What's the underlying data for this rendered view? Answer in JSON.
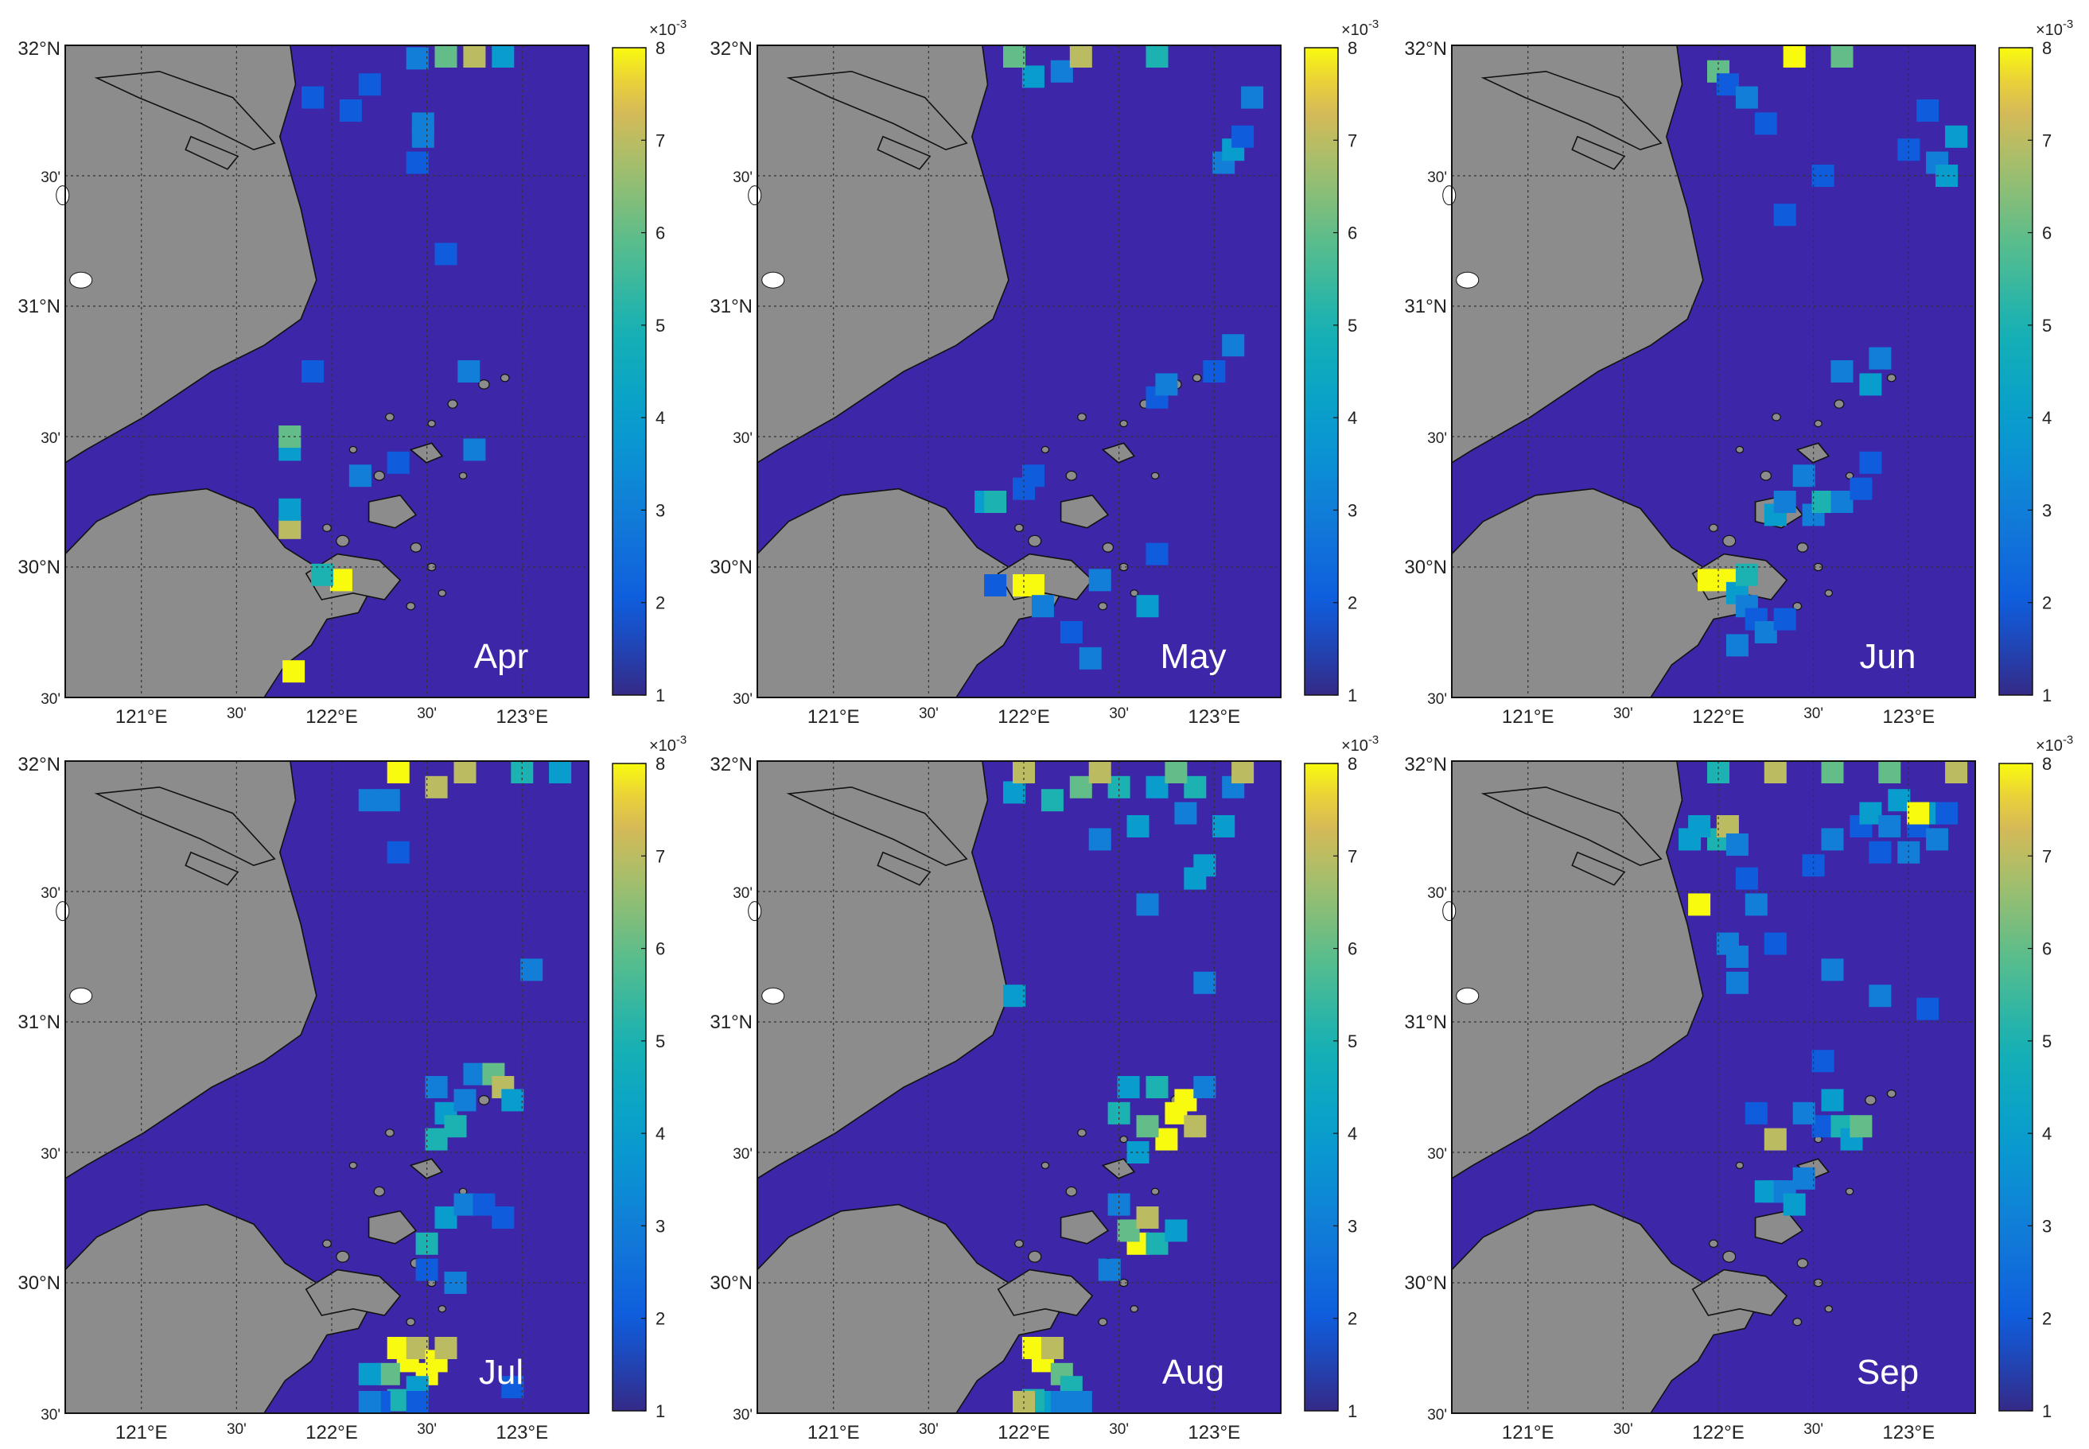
{
  "figure": {
    "panels": [
      {
        "month": "Apr",
        "hotspots": [
          [
            122.05,
            29.95,
            8
          ],
          [
            121.95,
            29.97,
            5
          ],
          [
            121.78,
            30.15,
            7
          ],
          [
            121.78,
            30.22,
            4
          ],
          [
            121.78,
            30.45,
            4
          ],
          [
            121.78,
            30.5,
            6
          ],
          [
            121.8,
            29.6,
            8
          ],
          [
            121.9,
            30.75,
            2
          ],
          [
            122.15,
            30.35,
            3
          ],
          [
            122.35,
            30.4,
            2
          ],
          [
            122.75,
            30.45,
            3
          ],
          [
            122.72,
            30.75,
            3
          ],
          [
            122.6,
            31.2,
            2
          ],
          [
            122.45,
            31.55,
            2
          ],
          [
            122.48,
            31.65,
            3
          ],
          [
            122.48,
            31.7,
            3
          ],
          [
            122.1,
            31.75,
            2
          ],
          [
            122.2,
            31.85,
            2
          ],
          [
            121.9,
            31.8,
            2
          ],
          [
            122.45,
            31.95,
            3
          ],
          [
            122.6,
            31.98,
            6
          ],
          [
            122.75,
            31.98,
            7
          ],
          [
            122.9,
            31.98,
            4
          ]
        ]
      },
      {
        "month": "May",
        "hotspots": [
          [
            122.05,
            29.93,
            8
          ],
          [
            122.0,
            29.93,
            8
          ],
          [
            121.85,
            29.93,
            2
          ],
          [
            121.8,
            30.25,
            4
          ],
          [
            121.85,
            30.25,
            5
          ],
          [
            122.0,
            30.3,
            2
          ],
          [
            122.05,
            30.35,
            2
          ],
          [
            122.1,
            29.85,
            3
          ],
          [
            122.25,
            29.75,
            2
          ],
          [
            122.35,
            29.65,
            3
          ],
          [
            122.4,
            29.95,
            3
          ],
          [
            122.65,
            29.85,
            4
          ],
          [
            122.7,
            30.05,
            2
          ],
          [
            122.7,
            30.65,
            2
          ],
          [
            122.75,
            30.7,
            3
          ],
          [
            123.0,
            30.75,
            2
          ],
          [
            123.1,
            30.85,
            3
          ],
          [
            123.05,
            31.55,
            3
          ],
          [
            123.1,
            31.6,
            4
          ],
          [
            123.15,
            31.65,
            2
          ],
          [
            123.2,
            31.8,
            3
          ],
          [
            122.05,
            31.88,
            4
          ],
          [
            122.2,
            31.9,
            3
          ],
          [
            121.95,
            31.98,
            6
          ],
          [
            122.3,
            31.98,
            7
          ],
          [
            122.7,
            31.98,
            5
          ]
        ]
      },
      {
        "month": "Jun",
        "hotspots": [
          [
            122.05,
            29.95,
            8
          ],
          [
            121.95,
            29.95,
            8
          ],
          [
            122.1,
            29.9,
            4
          ],
          [
            122.15,
            29.85,
            3
          ],
          [
            122.2,
            29.8,
            2
          ],
          [
            122.1,
            29.7,
            3
          ],
          [
            122.25,
            29.75,
            3
          ],
          [
            122.35,
            29.8,
            2
          ],
          [
            122.15,
            29.97,
            5
          ],
          [
            122.3,
            30.2,
            4
          ],
          [
            122.35,
            30.25,
            3
          ],
          [
            122.5,
            30.2,
            3
          ],
          [
            122.55,
            30.25,
            5
          ],
          [
            122.65,
            30.25,
            3
          ],
          [
            122.75,
            30.3,
            2
          ],
          [
            122.8,
            30.4,
            2
          ],
          [
            122.45,
            30.35,
            3
          ],
          [
            122.65,
            30.75,
            3
          ],
          [
            122.8,
            30.7,
            4
          ],
          [
            122.85,
            30.8,
            3
          ],
          [
            122.35,
            31.35,
            2
          ],
          [
            122.55,
            31.5,
            2
          ],
          [
            123.0,
            31.6,
            2
          ],
          [
            123.15,
            31.55,
            3
          ],
          [
            123.2,
            31.5,
            4
          ],
          [
            123.25,
            31.65,
            4
          ],
          [
            123.1,
            31.75,
            2
          ],
          [
            122.0,
            31.9,
            6
          ],
          [
            122.05,
            31.85,
            2
          ],
          [
            122.15,
            31.8,
            3
          ],
          [
            122.25,
            31.7,
            2
          ],
          [
            122.4,
            31.98,
            8
          ],
          [
            122.65,
            31.98,
            6
          ]
        ]
      },
      {
        "month": "Jul",
        "hotspots": [
          [
            122.35,
            29.75,
            8
          ],
          [
            122.4,
            29.7,
            8
          ],
          [
            122.45,
            29.75,
            7
          ],
          [
            122.5,
            29.65,
            8
          ],
          [
            122.55,
            29.7,
            8
          ],
          [
            122.6,
            29.75,
            7
          ],
          [
            122.3,
            29.65,
            6
          ],
          [
            122.35,
            29.55,
            5
          ],
          [
            122.45,
            29.6,
            4
          ],
          [
            122.2,
            29.65,
            4
          ],
          [
            122.25,
            29.5,
            2
          ],
          [
            122.2,
            29.42,
            3
          ],
          [
            122.45,
            29.35,
            2
          ],
          [
            122.5,
            30.15,
            5
          ],
          [
            122.6,
            30.25,
            4
          ],
          [
            122.7,
            30.3,
            3
          ],
          [
            122.8,
            30.3,
            2
          ],
          [
            122.9,
            30.25,
            2
          ],
          [
            122.5,
            30.05,
            2
          ],
          [
            122.65,
            30.0,
            3
          ],
          [
            122.95,
            29.6,
            2
          ],
          [
            122.55,
            30.55,
            5
          ],
          [
            122.6,
            30.65,
            4
          ],
          [
            122.7,
            30.7,
            3
          ],
          [
            122.75,
            30.8,
            3
          ],
          [
            122.85,
            30.8,
            6
          ],
          [
            122.9,
            30.75,
            7
          ],
          [
            122.95,
            30.7,
            4
          ],
          [
            122.65,
            30.6,
            5
          ],
          [
            122.55,
            30.75,
            3
          ],
          [
            123.05,
            31.2,
            3
          ],
          [
            122.35,
            31.65,
            2
          ],
          [
            122.2,
            31.85,
            3
          ],
          [
            122.3,
            31.85,
            3
          ],
          [
            122.55,
            31.9,
            7
          ],
          [
            122.35,
            31.98,
            8
          ],
          [
            122.7,
            31.98,
            7
          ],
          [
            123.0,
            31.98,
            5
          ],
          [
            123.2,
            31.98,
            4
          ]
        ]
      },
      {
        "month": "Aug",
        "hotspots": [
          [
            122.05,
            29.75,
            8
          ],
          [
            122.1,
            29.7,
            8
          ],
          [
            122.15,
            29.75,
            7
          ],
          [
            122.2,
            29.65,
            6
          ],
          [
            122.25,
            29.6,
            5
          ],
          [
            122.1,
            29.5,
            4
          ],
          [
            122.2,
            29.45,
            3
          ],
          [
            122.05,
            29.55,
            5
          ],
          [
            122.0,
            29.45,
            7
          ],
          [
            122.3,
            29.5,
            3
          ],
          [
            122.6,
            30.15,
            8
          ],
          [
            122.55,
            30.2,
            6
          ],
          [
            122.65,
            30.25,
            7
          ],
          [
            122.7,
            30.15,
            5
          ],
          [
            122.5,
            30.3,
            3
          ],
          [
            122.8,
            30.2,
            4
          ],
          [
            122.45,
            30.05,
            3
          ],
          [
            122.75,
            30.55,
            8
          ],
          [
            122.8,
            30.65,
            8
          ],
          [
            122.85,
            30.7,
            8
          ],
          [
            122.9,
            30.6,
            7
          ],
          [
            122.7,
            30.75,
            5
          ],
          [
            122.65,
            30.6,
            6
          ],
          [
            122.6,
            30.5,
            4
          ],
          [
            122.95,
            30.75,
            3
          ],
          [
            122.5,
            30.65,
            5
          ],
          [
            122.55,
            30.75,
            4
          ],
          [
            122.95,
            31.15,
            3
          ],
          [
            121.95,
            31.1,
            4
          ],
          [
            122.65,
            31.45,
            3
          ],
          [
            122.9,
            31.55,
            4
          ],
          [
            122.95,
            31.6,
            4
          ],
          [
            122.4,
            31.7,
            3
          ],
          [
            122.6,
            31.75,
            4
          ],
          [
            122.85,
            31.8,
            3
          ],
          [
            123.05,
            31.75,
            4
          ],
          [
            121.95,
            31.88,
            4
          ],
          [
            122.15,
            31.85,
            5
          ],
          [
            122.3,
            31.9,
            6
          ],
          [
            122.5,
            31.9,
            5
          ],
          [
            122.7,
            31.9,
            4
          ],
          [
            122.9,
            31.9,
            5
          ],
          [
            123.1,
            31.9,
            3
          ],
          [
            122.0,
            31.98,
            7
          ],
          [
            122.4,
            31.98,
            7
          ],
          [
            122.8,
            31.98,
            6
          ],
          [
            123.15,
            31.98,
            7
          ]
        ]
      },
      {
        "month": "Sep",
        "hotspots": [
          [
            122.25,
            30.35,
            4
          ],
          [
            122.3,
            30.35,
            4
          ],
          [
            122.35,
            30.35,
            3
          ],
          [
            122.4,
            30.3,
            4
          ],
          [
            122.45,
            30.4,
            3
          ],
          [
            122.55,
            30.6,
            2
          ],
          [
            122.6,
            30.7,
            4
          ],
          [
            122.65,
            30.6,
            5
          ],
          [
            122.7,
            30.55,
            4
          ],
          [
            122.75,
            30.6,
            6
          ],
          [
            122.3,
            30.55,
            7
          ],
          [
            122.45,
            30.65,
            3
          ],
          [
            122.2,
            30.65,
            2
          ],
          [
            122.55,
            30.85,
            2
          ],
          [
            122.1,
            31.15,
            3
          ],
          [
            122.3,
            31.3,
            2
          ],
          [
            122.6,
            31.2,
            3
          ],
          [
            122.85,
            31.1,
            3
          ],
          [
            123.1,
            31.05,
            2
          ],
          [
            121.9,
            31.45,
            8
          ],
          [
            122.0,
            31.7,
            5
          ],
          [
            122.05,
            31.75,
            7
          ],
          [
            122.1,
            31.68,
            3
          ],
          [
            121.85,
            31.7,
            4
          ],
          [
            121.9,
            31.75,
            4
          ],
          [
            122.15,
            31.55,
            2
          ],
          [
            122.2,
            31.45,
            3
          ],
          [
            122.05,
            31.3,
            3
          ],
          [
            122.1,
            31.25,
            3
          ],
          [
            122.5,
            31.6,
            2
          ],
          [
            122.6,
            31.7,
            3
          ],
          [
            122.75,
            31.75,
            2
          ],
          [
            122.8,
            31.8,
            4
          ],
          [
            122.9,
            31.75,
            3
          ],
          [
            122.95,
            31.85,
            4
          ],
          [
            123.05,
            31.75,
            2
          ],
          [
            123.1,
            31.8,
            4
          ],
          [
            123.15,
            31.7,
            3
          ],
          [
            123.2,
            31.8,
            2
          ],
          [
            123.0,
            31.65,
            3
          ],
          [
            122.85,
            31.65,
            2
          ],
          [
            123.05,
            31.8,
            8
          ],
          [
            122.0,
            31.98,
            5
          ],
          [
            122.3,
            31.98,
            7
          ],
          [
            122.6,
            31.98,
            6
          ],
          [
            122.9,
            31.98,
            6
          ],
          [
            123.25,
            31.98,
            7
          ]
        ]
      }
    ]
  },
  "axes": {
    "lat_ticks": [
      "32°N",
      "30'",
      "31°N",
      "30'",
      "30°N",
      "30'"
    ],
    "lon_ticks": [
      "121°E",
      "30'",
      "122°E",
      "30'",
      "123°E"
    ],
    "lat_values": [
      32.0,
      31.5,
      31.0,
      30.5,
      30.0,
      29.5
    ],
    "lon_values": [
      121.0,
      121.5,
      122.0,
      122.5,
      123.0
    ],
    "lon_range": [
      120.6,
      123.35
    ],
    "lat_range": [
      29.5,
      32.0
    ]
  },
  "colorbar": {
    "exponent_label": "×10-3",
    "ticks": [
      "8",
      "7",
      "6",
      "5",
      "4",
      "3",
      "2",
      "1"
    ],
    "tick_values": [
      8,
      7,
      6,
      5,
      4,
      3,
      2,
      1
    ],
    "range": [
      1,
      8
    ]
  },
  "colors": {
    "land": "#8c8c8c",
    "water_background": "#3e26a8",
    "grid": "#333333",
    "coastline": "#111111",
    "month_label": "#ffffff"
  }
}
